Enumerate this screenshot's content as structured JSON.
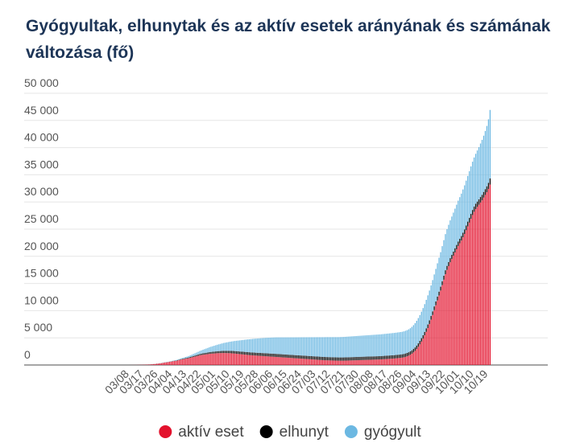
{
  "chart_data": {
    "type": "stacked_bar",
    "title": "Gyógyultak, elhunytak és az aktív esetek arányának és számának változása (fő)",
    "categories": [
      null,
      null,
      null,
      null,
      "03/08",
      null,
      null,
      null,
      null,
      null,
      null,
      null,
      null,
      "03/17",
      null,
      null,
      null,
      null,
      null,
      null,
      null,
      null,
      "03/26",
      null,
      null,
      null,
      null,
      null,
      null,
      null,
      null,
      "04/04",
      null,
      null,
      null,
      null,
      null,
      null,
      null,
      null,
      "04/13",
      null,
      null,
      null,
      null,
      null,
      null,
      null,
      null,
      "04/22",
      null,
      null,
      null,
      null,
      null,
      null,
      null,
      null,
      "05/01",
      null,
      null,
      null,
      null,
      null,
      null,
      null,
      null,
      "05/10",
      null,
      null,
      null,
      null,
      null,
      null,
      null,
      null,
      "05/19",
      null,
      null,
      null,
      null,
      null,
      null,
      null,
      null,
      "05/28",
      null,
      null,
      null,
      null,
      null,
      null,
      null,
      null,
      "06/06",
      null,
      null,
      null,
      null,
      null,
      null,
      null,
      null,
      "06/15",
      null,
      null,
      null,
      null,
      null,
      null,
      null,
      null,
      "06/24",
      null,
      null,
      null,
      null,
      null,
      null,
      null,
      null,
      "07/03",
      null,
      null,
      null,
      null,
      null,
      null,
      null,
      null,
      "07/12",
      null,
      null,
      null,
      null,
      null,
      null,
      null,
      null,
      "07/21",
      null,
      null,
      null,
      null,
      null,
      null,
      null,
      null,
      "07/30",
      null,
      null,
      null,
      null,
      null,
      null,
      null,
      null,
      "08/08",
      null,
      null,
      null,
      null,
      null,
      null,
      null,
      null,
      "08/17",
      null,
      null,
      null,
      null,
      null,
      null,
      null,
      null,
      "08/26",
      null,
      null,
      null,
      null,
      null,
      null,
      null,
      null,
      "09/04",
      null,
      null,
      null,
      null,
      null,
      null,
      null,
      null,
      "09/13",
      null,
      null,
      null,
      null,
      null,
      null,
      null,
      null,
      "09/22",
      null,
      null,
      null,
      null,
      null,
      null,
      null,
      null,
      "10/01",
      null,
      null,
      null,
      null,
      null,
      null,
      null,
      null,
      "10/10",
      null,
      null,
      null,
      null,
      null,
      null,
      null,
      null,
      "10/19",
      null
    ],
    "series": [
      {
        "name": "aktív eset",
        "color": "#e3122d",
        "values": [
          0,
          0,
          0,
          0,
          2,
          7,
          9,
          12,
          13,
          19,
          30,
          32,
          39,
          50,
          58,
          73,
          85,
          103,
          131,
          167,
          187,
          226,
          261,
          300,
          343,
          408,
          447,
          492,
          525,
          585,
          623,
          678,
          733,
          744,
          817,
          895,
          980,
          1040,
          1090,
          1150,
          1190,
          1250,
          1330,
          1400,
          1480,
          1550,
          1620,
          1700,
          1790,
          1830,
          1880,
          1920,
          1960,
          2000,
          2050,
          2080,
          2100,
          2120,
          2150,
          2170,
          2180,
          2190,
          2200,
          2210,
          2200,
          2190,
          2180,
          2170,
          2150,
          2130,
          2100,
          2070,
          2040,
          2010,
          1980,
          1950,
          1920,
          1890,
          1860,
          1830,
          1800,
          1780,
          1760,
          1740,
          1720,
          1700,
          1680,
          1660,
          1640,
          1620,
          1600,
          1580,
          1560,
          1540,
          1520,
          1500,
          1480,
          1460,
          1440,
          1420,
          1400,
          1380,
          1360,
          1340,
          1320,
          1300,
          1280,
          1260,
          1240,
          1220,
          1200,
          1180,
          1160,
          1140,
          1120,
          1100,
          1080,
          1060,
          1040,
          1020,
          1000,
          980,
          960,
          940,
          920,
          900,
          880,
          870,
          860,
          850,
          840,
          830,
          820,
          810,
          800,
          790,
          790,
          790,
          790,
          800,
          810,
          820,
          830,
          840,
          850,
          860,
          870,
          880,
          890,
          900,
          910,
          920,
          930,
          940,
          950,
          960,
          970,
          980,
          990,
          1000,
          1010,
          1020,
          1040,
          1060,
          1080,
          1100,
          1120,
          1140,
          1160,
          1180,
          1200,
          1230,
          1260,
          1290,
          1320,
          1360,
          1420,
          1500,
          1600,
          1720,
          1880,
          2080,
          2320,
          2600,
          2950,
          3350,
          3800,
          4300,
          4850,
          5450,
          6100,
          6800,
          7550,
          8350,
          9200,
          10100,
          11000,
          11900,
          12800,
          13700,
          14700,
          15700,
          16700,
          17500,
          18200,
          18900,
          19500,
          20100,
          20700,
          21300,
          21900,
          22400,
          22900,
          23500,
          24100,
          24800,
          25500,
          26200,
          26900,
          27600,
          28200,
          28700,
          29100,
          29500,
          29900,
          30300,
          30800,
          31300,
          31800,
          32400,
          33200
        ]
      },
      {
        "name": "elhunyt",
        "color": "#000000",
        "values": [
          0,
          0,
          0,
          0,
          0,
          0,
          0,
          0,
          0,
          0,
          0,
          1,
          1,
          1,
          1,
          1,
          3,
          4,
          6,
          7,
          9,
          10,
          10,
          11,
          13,
          15,
          16,
          20,
          21,
          26,
          32,
          38,
          47,
          58,
          66,
          77,
          85,
          99,
          109,
          122,
          134,
          142,
          156,
          172,
          189,
          199,
          213,
          225,
          239,
          262,
          272,
          280,
          291,
          300,
          312,
          322,
          335,
          340,
          351,
          360,
          370,
          383,
          392,
          405,
          413,
          421,
          430,
          436,
          442,
          451,
          462,
          470,
          473,
          477,
          484,
          491,
          499,
          505,
          509,
          517,
          520,
          524,
          526,
          527,
          529,
          534,
          538,
          542,
          546,
          549,
          551,
          553,
          554,
          561,
          563,
          566,
          566,
          567,
          568,
          568,
          568,
          569,
          570,
          570,
          570,
          571,
          572,
          572,
          573,
          575,
          577,
          581,
          585,
          585,
          586,
          588,
          588,
          589,
          589,
          590,
          591,
          593,
          595,
          596,
          596,
          597,
          598,
          598,
          599,
          599,
          599,
          599,
          599,
          600,
          601,
          603,
          603,
          604,
          604,
          604,
          605,
          605,
          605,
          606,
          607,
          607,
          607,
          607,
          608,
          608,
          610,
          610,
          611,
          611,
          611,
          611,
          611,
          611,
          611,
          612,
          612,
          612,
          613,
          614,
          614,
          614,
          614,
          614,
          614,
          614,
          615,
          615,
          617,
          617,
          617,
          618,
          620,
          624,
          625,
          627,
          628,
          629,
          631,
          633,
          635,
          637,
          641,
          645,
          648,
          651,
          655,
          660,
          665,
          671,
          677,
          684,
          689,
          695,
          703,
          711,
          720,
          728,
          737,
          746,
          755,
          764,
          773,
          782,
          792,
          802,
          814,
          826,
          837,
          851,
          863,
          876,
          890,
          903,
          918,
          932,
          946,
          962,
          976,
          991,
          1008,
          1025,
          1045,
          1064,
          1085,
          1108,
          1129
        ]
      },
      {
        "name": "gyógyult",
        "color": "#6cb8e2",
        "values": [
          0,
          0,
          0,
          0,
          0,
          0,
          0,
          0,
          0,
          0,
          0,
          0,
          0,
          0,
          0,
          1,
          1,
          2,
          2,
          2,
          7,
          16,
          16,
          21,
          25,
          34,
          34,
          37,
          44,
          48,
          58,
          66,
          74,
          85,
          99,
          118,
          135,
          150,
          170,
          200,
          230,
          260,
          290,
          330,
          370,
          410,
          460,
          500,
          550,
          600,
          660,
          720,
          780,
          840,
          900,
          960,
          1020,
          1080,
          1140,
          1200,
          1260,
          1320,
          1380,
          1440,
          1500,
          1560,
          1620,
          1680,
          1740,
          1800,
          1860,
          1920,
          1980,
          2040,
          2100,
          2160,
          2220,
          2280,
          2340,
          2390,
          2440,
          2490,
          2540,
          2580,
          2620,
          2660,
          2700,
          2740,
          2780,
          2820,
          2860,
          2890,
          2920,
          2950,
          2980,
          3010,
          3040,
          3060,
          3080,
          3100,
          3120,
          3140,
          3160,
          3180,
          3200,
          3220,
          3240,
          3260,
          3280,
          3300,
          3320,
          3340,
          3360,
          3380,
          3400,
          3420,
          3440,
          3460,
          3480,
          3500,
          3520,
          3540,
          3560,
          3580,
          3600,
          3620,
          3640,
          3660,
          3670,
          3680,
          3690,
          3700,
          3710,
          3720,
          3730,
          3740,
          3750,
          3760,
          3770,
          3780,
          3790,
          3800,
          3810,
          3820,
          3830,
          3840,
          3850,
          3860,
          3870,
          3880,
          3890,
          3900,
          3910,
          3920,
          3930,
          3940,
          3950,
          3960,
          3970,
          3980,
          3990,
          4000,
          4010,
          4020,
          4030,
          4040,
          4050,
          4060,
          4070,
          4080,
          4090,
          4100,
          4110,
          4120,
          4130,
          4140,
          4150,
          4170,
          4190,
          4220,
          4260,
          4310,
          4380,
          4460,
          4550,
          4650,
          4750,
          4860,
          4980,
          5100,
          5230,
          5360,
          5490,
          5620,
          5750,
          5880,
          6000,
          6120,
          6240,
          6350,
          6450,
          6550,
          6650,
          6750,
          6850,
          6950,
          7050,
          7160,
          7280,
          7400,
          7530,
          7660,
          7800,
          7950,
          8100,
          8250,
          8400,
          8560,
          8720,
          8880,
          9040,
          9200,
          9400,
          9600,
          9850,
          10100,
          10350,
          10700,
          11100,
          11700,
          12600
        ]
      }
    ],
    "ylim": [
      0,
      50000
    ],
    "yticks": [
      0,
      {
        "value": 5000,
        "label": "5 000"
      },
      {
        "value": 10000,
        "label": "10 000"
      },
      {
        "value": 15000,
        "label": "15 000"
      },
      {
        "value": 20000,
        "label": "20 000"
      },
      {
        "value": 25000,
        "label": "25 000"
      },
      {
        "value": 30000,
        "label": "30 000"
      },
      {
        "value": 35000,
        "label": "35 000"
      },
      {
        "value": 40000,
        "label": "40 000"
      },
      {
        "value": 45000,
        "label": "45 000"
      },
      {
        "value": 50000,
        "label": "50 000"
      }
    ],
    "grid": true
  }
}
